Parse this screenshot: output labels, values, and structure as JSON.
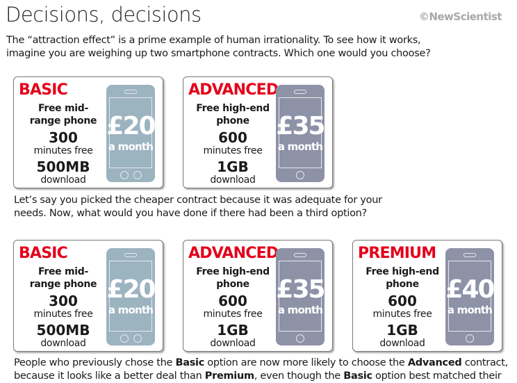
{
  "header": {
    "title": "Decisions, decisions",
    "logo": "©NewScientist"
  },
  "intro": [
    "The “attraction effect” is a prime example of human irrationality. To see how it works,",
    "imagine you are weighing up two smartphone contracts. Which one would you choose?"
  ],
  "middle": [
    "Let’s say you picked the cheaper contract because it was adequate for your",
    "needs. Now, what would you have done if there had been a third option?"
  ],
  "conclusion": {
    "l1a": "People who previously chose the ",
    "l1b": "Basic",
    "l1c": " option are now more likely to choose the ",
    "l1d": "Advanced",
    "l1e": " contract,",
    "l2a": "because it looks like a better deal than ",
    "l2b": "Premium",
    "l2c": ", even though the ",
    "l2d": "Basic",
    "l2e": " option best matched their needs"
  },
  "colors": {
    "accent": "#e3001b",
    "basic_phone": "#9cb3c0",
    "advanced_phone": "#8e92a7"
  },
  "row1": [
    {
      "name": "BASIC",
      "feature": "Free mid-range phone",
      "minutes": "300",
      "minutes_label": "minutes free",
      "data": "500MB",
      "data_label": "download",
      "price": "£20",
      "period": "a month",
      "style": "basic"
    },
    {
      "name": "ADVANCED",
      "feature": "Free high-end phone",
      "minutes": "600",
      "minutes_label": "minutes free",
      "data": "1GB",
      "data_label": "download",
      "price": "£35",
      "period": "a month",
      "style": "advanced"
    }
  ],
  "row2": [
    {
      "name": "BASIC",
      "feature": "Free mid-range phone",
      "minutes": "300",
      "minutes_label": "minutes free",
      "data": "500MB",
      "data_label": "download",
      "price": "£20",
      "period": "a month",
      "style": "basic"
    },
    {
      "name": "ADVANCED",
      "feature": "Free high-end phone",
      "minutes": "600",
      "minutes_label": "minutes free",
      "data": "1GB",
      "data_label": "download",
      "price": "£35",
      "period": "a month",
      "style": "advanced"
    },
    {
      "name": "PREMIUM",
      "feature": "Free high-end phone",
      "minutes": "600",
      "minutes_label": "minutes free",
      "data": "1GB",
      "data_label": "download",
      "price": "£40",
      "period": "a month",
      "style": "advanced"
    }
  ]
}
